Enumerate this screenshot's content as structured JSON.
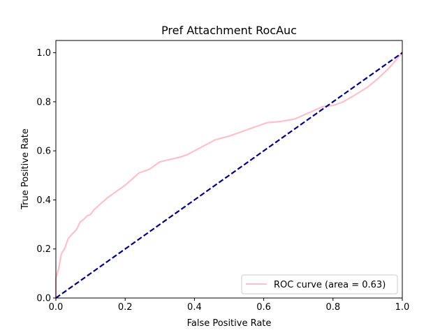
{
  "chart_data": {
    "type": "line",
    "title": "Pref Attachment RocAuc",
    "xlabel": "False Positive Rate",
    "ylabel": "True Positive Rate",
    "xlim": [
      0.0,
      1.0
    ],
    "ylim": [
      0.0,
      1.05
    ],
    "xticks": [
      0.0,
      0.2,
      0.4,
      0.6,
      0.8,
      1.0
    ],
    "yticks": [
      0.0,
      0.2,
      0.4,
      0.6,
      0.8,
      1.0
    ],
    "xtick_labels": [
      "0.0",
      "0.2",
      "0.4",
      "0.6",
      "0.8",
      "1.0"
    ],
    "ytick_labels": [
      "0.0",
      "0.2",
      "0.4",
      "0.6",
      "0.8",
      "1.0"
    ],
    "grid": false,
    "legend_position": "lower-right",
    "series": [
      {
        "name": "ROC curve (area = 0.63)",
        "color": "#ffc0cb",
        "style": "solid",
        "x": [
          0.0,
          0.0,
          0.004,
          0.008,
          0.012,
          0.016,
          0.02,
          0.025,
          0.03,
          0.035,
          0.04,
          0.05,
          0.06,
          0.07,
          0.08,
          0.09,
          0.1,
          0.11,
          0.13,
          0.15,
          0.16,
          0.18,
          0.2,
          0.22,
          0.24,
          0.27,
          0.3,
          0.33,
          0.36,
          0.38,
          0.42,
          0.46,
          0.5,
          0.55,
          0.58,
          0.61,
          0.65,
          0.69,
          0.73,
          0.77,
          0.8,
          0.83,
          0.86,
          0.9,
          0.93,
          0.96,
          1.0
        ],
        "y": [
          0.0,
          0.08,
          0.1,
          0.12,
          0.15,
          0.18,
          0.19,
          0.2,
          0.22,
          0.24,
          0.25,
          0.265,
          0.28,
          0.31,
          0.32,
          0.335,
          0.34,
          0.36,
          0.385,
          0.41,
          0.42,
          0.44,
          0.46,
          0.485,
          0.51,
          0.525,
          0.555,
          0.565,
          0.575,
          0.585,
          0.615,
          0.645,
          0.66,
          0.685,
          0.7,
          0.715,
          0.72,
          0.73,
          0.755,
          0.78,
          0.785,
          0.8,
          0.825,
          0.86,
          0.895,
          0.935,
          1.0
        ]
      },
      {
        "name": "chance diagonal",
        "color": "#000080",
        "style": "dashed",
        "x": [
          0.0,
          1.0
        ],
        "y": [
          0.0,
          1.0
        ]
      }
    ],
    "legend": [
      {
        "label": "ROC curve (area = 0.63)",
        "color": "#ffc0cb"
      }
    ]
  }
}
